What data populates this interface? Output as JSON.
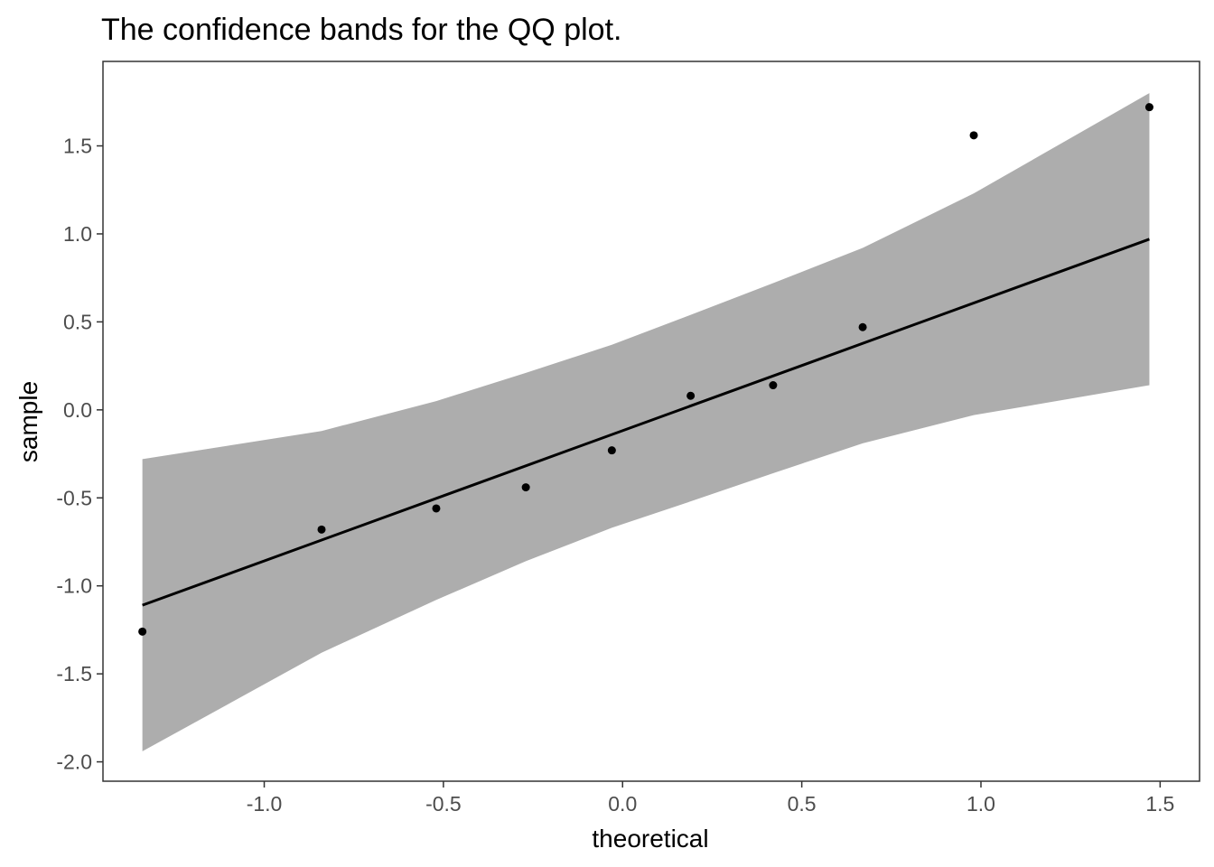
{
  "chart_data": {
    "type": "scatter",
    "title": "The confidence bands for the QQ plot.",
    "xlabel": "theoretical",
    "ylabel": "sample",
    "xlim": [
      -1.45,
      1.61
    ],
    "ylim": [
      -2.11,
      1.98
    ],
    "x_ticks": [
      -1.0,
      -0.5,
      0.0,
      0.5,
      1.0,
      1.5
    ],
    "x_tick_labels": [
      "-1.0",
      "-0.5",
      "0.0",
      "0.5",
      "1.0",
      "1.5"
    ],
    "y_ticks": [
      -2.0,
      -1.5,
      -1.0,
      -0.5,
      0.0,
      0.5,
      1.0,
      1.5
    ],
    "y_tick_labels": [
      "-2.0",
      "-1.5",
      "-1.0",
      "-0.5",
      "0.0",
      "0.5",
      "1.0",
      "1.5"
    ],
    "grid": false,
    "points": [
      {
        "x": -1.34,
        "y": -1.26
      },
      {
        "x": -0.84,
        "y": -0.68
      },
      {
        "x": -0.52,
        "y": -0.56
      },
      {
        "x": -0.27,
        "y": -0.44
      },
      {
        "x": -0.03,
        "y": -0.23
      },
      {
        "x": 0.19,
        "y": 0.08
      },
      {
        "x": 0.42,
        "y": 0.14
      },
      {
        "x": 0.67,
        "y": 0.47
      },
      {
        "x": 0.98,
        "y": 1.56
      },
      {
        "x": 1.47,
        "y": 1.72
      }
    ],
    "line": {
      "x": [
        -1.34,
        1.47
      ],
      "y": [
        -1.11,
        0.97
      ]
    },
    "band": {
      "x": [
        -1.34,
        -0.84,
        -0.52,
        -0.27,
        -0.03,
        0.19,
        0.42,
        0.67,
        0.98,
        1.47
      ],
      "upper": [
        -0.28,
        -0.12,
        0.05,
        0.21,
        0.37,
        0.54,
        0.72,
        0.92,
        1.23,
        1.8
      ],
      "lower": [
        -1.94,
        -1.38,
        -1.08,
        -0.86,
        -0.67,
        -0.52,
        -0.36,
        -0.19,
        -0.03,
        0.14
      ]
    },
    "colors": {
      "band": "#adadad",
      "points": "#000000",
      "line": "#000000",
      "panel_border": "#333333"
    }
  }
}
